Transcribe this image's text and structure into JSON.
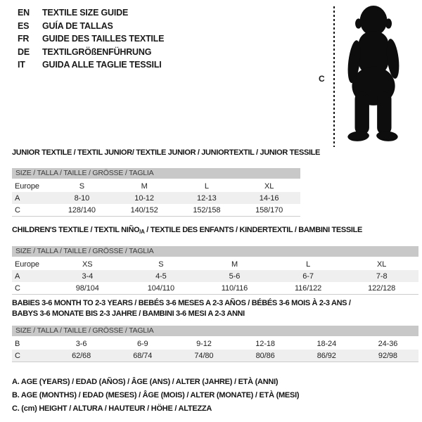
{
  "languages": [
    {
      "code": "EN",
      "title": "TEXTILE SIZE GUIDE"
    },
    {
      "code": "ES",
      "title": "GUÍA DE TALLAS"
    },
    {
      "code": "FR",
      "title": "GUIDE DES TAILLES TEXTILE"
    },
    {
      "code": "DE",
      "title": "TEXTILGRÖßENFÜHRUNG"
    },
    {
      "code": "IT",
      "title": "GUIDA ALLE TAGLIE TESSILI"
    }
  ],
  "figure": {
    "height_label": "C",
    "icon": "baby-silhouette"
  },
  "tables": [
    {
      "title": "JUNIOR TEXTILE / TEXTIL JUNIOR/ TEXTILE JUNIOR / JUNIORTEXTIL / JUNIOR TESSILE",
      "size_header": "SIZE / TALLA / TAILLE / GRÖSSE / TAGLIA",
      "columns": [
        "Europe",
        "S",
        "M",
        "L",
        "XL"
      ],
      "rows": [
        {
          "label": "A",
          "values": [
            "8-10",
            "10-12",
            "12-13",
            "14-16"
          ],
          "shaded": true
        },
        {
          "label": "C",
          "values": [
            "128/140",
            "140/152",
            "152/158",
            "158/170"
          ],
          "shaded": false
        }
      ]
    },
    {
      "title_pre": "CHILDREN'S TEXTILE / TEXTIL NIÑO",
      "title_sub": "/A",
      "title_post": " / TEXTILE DES ENFANTS / KINDERTEXTIL / BAMBINI TESSILE",
      "size_header": "SIZE / TALLA / TAILLE / GRÖSSE / TAGLIA",
      "columns": [
        "Europe",
        "XS",
        "S",
        "M",
        "L",
        "XL"
      ],
      "rows": [
        {
          "label": "A",
          "values": [
            "3-4",
            "4-5",
            "5-6",
            "6-7",
            "7-8"
          ],
          "shaded": true
        },
        {
          "label": "C",
          "values": [
            "98/104",
            "104/110",
            "110/116",
            "116/122",
            "122/128"
          ],
          "shaded": false
        }
      ]
    },
    {
      "title_lines": [
        "BABIES 3-6 MONTH TO 2-3 YEARS / BEBÉS 3-6 MESES A 2-3 AÑOS / BÉBÉS 3-6 MOIS À 2-3 ANS /",
        "BABYS 3-6 MONATE BIS 2-3 JAHRE / BAMBINI 3-6 MESI A 2-3 ANNI"
      ],
      "size_header": "SIZE / TALLA / TAILLE / GRÖSSE / TAGLIA",
      "columns": null,
      "rows": [
        {
          "label": "B",
          "values": [
            "3-6",
            "6-9",
            "9-12",
            "12-18",
            "18-24",
            "24-36"
          ],
          "shaded": false
        },
        {
          "label": "C",
          "values": [
            "62/68",
            "68/74",
            "74/80",
            "80/86",
            "86/92",
            "92/98"
          ],
          "shaded": true
        }
      ]
    }
  ],
  "footnotes": [
    "A. AGE (YEARS) / EDAD (AÑOS) / ÂGE (ANS) / ALTER (JAHRE) / ETÀ (ANNI)",
    "B. AGE (MONTHS) / EDAD (MESES) / ÂGE (MOIS) / ALTER (MONATE) / ETÀ (MESI)",
    "C. (cm) HEIGHT / ALTURA / HAUTEUR / HÖHE / ALTEZZA"
  ],
  "colors": {
    "size_bar_bg": "#c8c8c8",
    "row_shade_bg": "#efefef",
    "text": "#1a1a1a",
    "rule": "#cccccc"
  }
}
